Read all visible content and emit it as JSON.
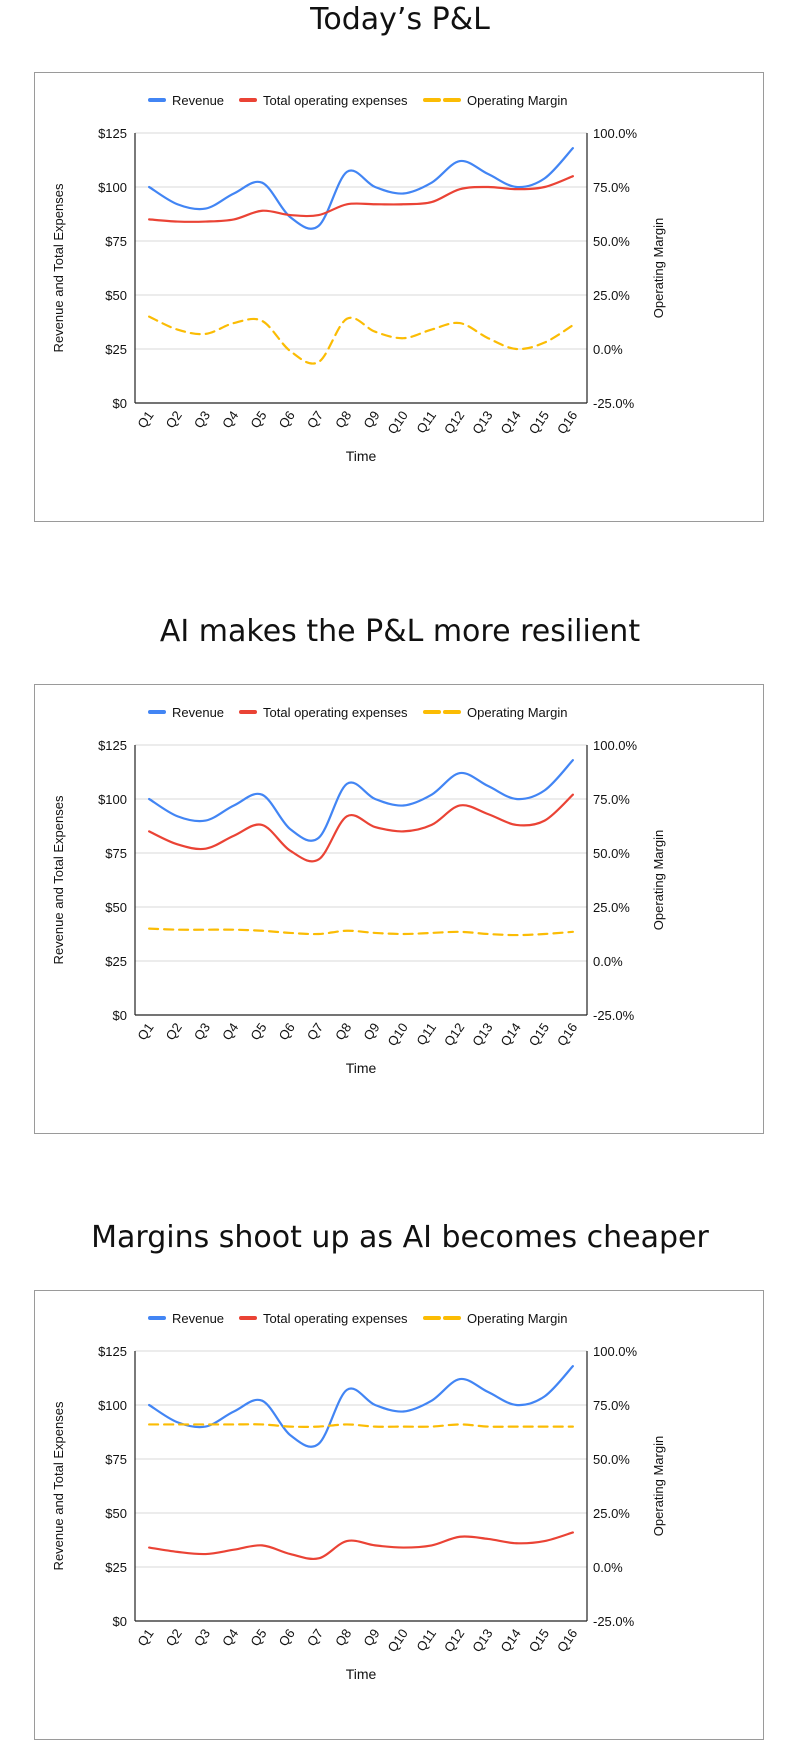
{
  "colors": {
    "revenue": "#4285F4",
    "expenses": "#EA4335",
    "margin": "#FBBC04",
    "grid": "#d9d9d9"
  },
  "chart_data": [
    {
      "type": "line",
      "title": "Today’s P&L",
      "xlabel": "Time",
      "ylabel": "Revenue and Total Expenses",
      "y2label": "Operating Margin",
      "categories": [
        "Q1",
        "Q2",
        "Q3",
        "Q4",
        "Q5",
        "Q6",
        "Q7",
        "Q8",
        "Q9",
        "Q10",
        "Q11",
        "Q12",
        "Q13",
        "Q14",
        "Q15",
        "Q16"
      ],
      "ylim": [
        0,
        125
      ],
      "yticks": [
        "$0",
        "$25",
        "$50",
        "$75",
        "$100",
        "$125"
      ],
      "y2lim": [
        -25,
        100
      ],
      "y2ticks": [
        "-25.0%",
        "0.0%",
        "25.0%",
        "50.0%",
        "75.0%",
        "100.0%"
      ],
      "legend": "top",
      "grid": true,
      "series": [
        {
          "name": "Revenue",
          "axis": "left",
          "dashed": false,
          "values": [
            100,
            92,
            90,
            97,
            102,
            86,
            82,
            107,
            100,
            97,
            102,
            112,
            106,
            100,
            104,
            118
          ]
        },
        {
          "name": "Total operating expenses",
          "axis": "left",
          "dashed": false,
          "values": [
            85,
            84,
            84,
            85,
            89,
            87,
            87,
            92,
            92,
            92,
            93,
            99,
            100,
            99,
            100,
            105
          ]
        },
        {
          "name": "Operating Margin",
          "axis": "right",
          "dashed": true,
          "values": [
            15,
            9,
            7,
            12,
            13,
            -1,
            -6,
            14,
            8,
            5,
            9,
            12,
            5,
            0,
            3,
            11
          ]
        }
      ]
    },
    {
      "type": "line",
      "title": "AI makes the P&L more resilient",
      "xlabel": "Time",
      "ylabel": "Revenue and Total Expenses",
      "y2label": "Operating Margin",
      "categories": [
        "Q1",
        "Q2",
        "Q3",
        "Q4",
        "Q5",
        "Q6",
        "Q7",
        "Q8",
        "Q9",
        "Q10",
        "Q11",
        "Q12",
        "Q13",
        "Q14",
        "Q15",
        "Q16"
      ],
      "ylim": [
        0,
        125
      ],
      "yticks": [
        "$0",
        "$25",
        "$50",
        "$75",
        "$100",
        "$125"
      ],
      "y2lim": [
        -25,
        100
      ],
      "y2ticks": [
        "-25.0%",
        "0.0%",
        "25.0%",
        "50.0%",
        "75.0%",
        "100.0%"
      ],
      "legend": "top",
      "grid": true,
      "series": [
        {
          "name": "Revenue",
          "axis": "left",
          "dashed": false,
          "values": [
            100,
            92,
            90,
            97,
            102,
            86,
            82,
            107,
            100,
            97,
            102,
            112,
            106,
            100,
            104,
            118
          ]
        },
        {
          "name": "Total operating expenses",
          "axis": "left",
          "dashed": false,
          "values": [
            85,
            79,
            77,
            83,
            88,
            76,
            72,
            92,
            87,
            85,
            88,
            97,
            93,
            88,
            90,
            102
          ]
        },
        {
          "name": "Operating Margin",
          "axis": "right",
          "dashed": true,
          "values": [
            15,
            14.5,
            14.5,
            14.5,
            14,
            13,
            12.5,
            14,
            13,
            12.5,
            13,
            13.5,
            12.5,
            12,
            12.5,
            13.5
          ]
        }
      ]
    },
    {
      "type": "line",
      "title": "Margins shoot up as AI becomes cheaper",
      "xlabel": "Time",
      "ylabel": "Revenue and Total Expenses",
      "y2label": "Operating Margin",
      "categories": [
        "Q1",
        "Q2",
        "Q3",
        "Q4",
        "Q5",
        "Q6",
        "Q7",
        "Q8",
        "Q9",
        "Q10",
        "Q11",
        "Q12",
        "Q13",
        "Q14",
        "Q15",
        "Q16"
      ],
      "ylim": [
        0,
        125
      ],
      "yticks": [
        "$0",
        "$25",
        "$50",
        "$75",
        "$100",
        "$125"
      ],
      "y2lim": [
        -25,
        100
      ],
      "y2ticks": [
        "-25.0%",
        "0.0%",
        "25.0%",
        "50.0%",
        "75.0%",
        "100.0%"
      ],
      "legend": "top",
      "grid": true,
      "series": [
        {
          "name": "Revenue",
          "axis": "left",
          "dashed": false,
          "values": [
            100,
            92,
            90,
            97,
            102,
            86,
            82,
            107,
            100,
            97,
            102,
            112,
            106,
            100,
            104,
            118
          ]
        },
        {
          "name": "Total operating expenses",
          "axis": "left",
          "dashed": false,
          "values": [
            34,
            32,
            31,
            33,
            35,
            31,
            29,
            37,
            35,
            34,
            35,
            39,
            38,
            36,
            37,
            41
          ]
        },
        {
          "name": "Operating Margin",
          "axis": "right",
          "dashed": true,
          "values": [
            66,
            66,
            66,
            66,
            66,
            65,
            65,
            66,
            65,
            65,
            65,
            66,
            65,
            65,
            65,
            65
          ]
        }
      ]
    }
  ]
}
